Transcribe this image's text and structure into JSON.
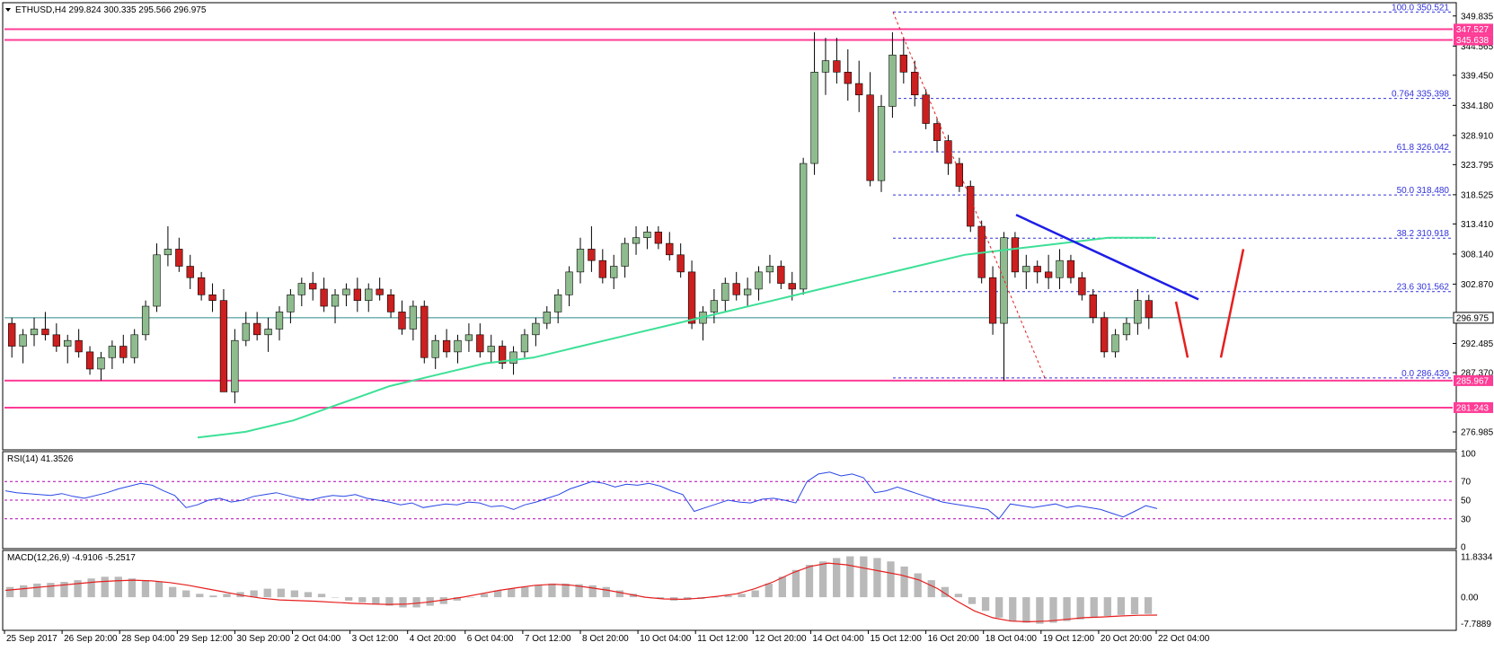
{
  "header": {
    "main": "ETHUSD,H4  299.824 300.335 295.566 296.975",
    "rsi": "RSI(14) 41.3526",
    "macd": "MACD(12,26,9) -4.9106 -5.2517"
  },
  "colors": {
    "bull_body": "#8fbc8f",
    "bear_body": "#cc1f1f",
    "wick": "#000000",
    "ma": "#3ce096",
    "resistance": "#ff3c96",
    "fib": "#3232dc",
    "trendline": "#1e1ee6",
    "rsi_line": "#2846e6",
    "macd_hist": "#b9b9b9",
    "macd_signal": "#e61e1e",
    "current_price": "#2d8a8a",
    "arrows": "#e61e1e"
  },
  "chart_data": [
    {
      "type": "candlestick",
      "symbol": "ETHUSD",
      "timeframe": "H4",
      "ylim": [
        274,
        352
      ],
      "y_ticks": [
        "349.835",
        "344.565",
        "339.450",
        "334.180",
        "328.910",
        "323.795",
        "318.525",
        "313.410",
        "308.140",
        "302.870",
        "292.485",
        "287.370",
        "276.985"
      ],
      "x_ticks": [
        "25 Sep 2017",
        "26 Sep 20:00",
        "28 Sep 04:00",
        "29 Sep 12:00",
        "30 Sep 20:00",
        "2 Oct 04:00",
        "3 Oct 12:00",
        "4 Oct 20:00",
        "6 Oct 04:00",
        "7 Oct 12:00",
        "8 Oct 20:00",
        "10 Oct 04:00",
        "11 Oct 12:00",
        "12 Oct 20:00",
        "14 Oct 04:00",
        "15 Oct 12:00",
        "16 Oct 20:00",
        "18 Oct 04:00",
        "19 Oct 12:00",
        "20 Oct 20:00",
        "22 Oct 04:00"
      ],
      "current_price": "296.975",
      "horizontal_levels": [
        {
          "label": "347.527",
          "value": 347.527
        },
        {
          "label": "345.638",
          "value": 345.638
        },
        {
          "label": "285.967",
          "value": 285.967
        },
        {
          "label": "281.243",
          "value": 281.243
        }
      ],
      "fibonacci": [
        {
          "label": "100.0  350.521",
          "value": 350.521
        },
        {
          "label": "0.764  335.398",
          "value": 335.398
        },
        {
          "label": "61.8  326.042",
          "value": 326.042
        },
        {
          "label": "50.0  318.480",
          "value": 318.48
        },
        {
          "label": "38.2  310.918",
          "value": 310.918
        },
        {
          "label": "23.6  301.562",
          "value": 301.562
        },
        {
          "label": "0.0  286.439",
          "value": 286.439
        }
      ],
      "candles": [
        [
          296,
          297,
          290,
          292
        ],
        [
          292,
          295,
          289,
          294
        ],
        [
          294,
          297,
          292,
          295
        ],
        [
          295,
          298,
          293,
          294
        ],
        [
          294,
          296,
          291,
          292
        ],
        [
          292,
          294,
          289,
          293
        ],
        [
          293,
          295,
          290,
          291
        ],
        [
          291,
          292,
          287,
          288
        ],
        [
          288,
          291,
          286,
          290
        ],
        [
          290,
          293,
          288,
          292
        ],
        [
          292,
          294,
          289,
          290
        ],
        [
          290,
          295,
          289,
          294
        ],
        [
          294,
          300,
          293,
          299
        ],
        [
          299,
          310,
          298,
          308
        ],
        [
          308,
          313,
          306,
          309
        ],
        [
          309,
          311,
          305,
          306
        ],
        [
          306,
          308,
          302,
          304
        ],
        [
          304,
          305,
          300,
          301
        ],
        [
          301,
          303,
          298,
          300
        ],
        [
          300,
          302,
          284,
          284
        ],
        [
          284,
          295,
          282,
          293
        ],
        [
          293,
          298,
          292,
          296
        ],
        [
          296,
          298,
          293,
          294
        ],
        [
          294,
          297,
          291,
          295
        ],
        [
          295,
          299,
          293,
          298
        ],
        [
          298,
          302,
          296,
          301
        ],
        [
          301,
          304,
          299,
          303
        ],
        [
          303,
          305,
          300,
          302
        ],
        [
          302,
          304,
          298,
          299
        ],
        [
          299,
          302,
          296,
          301
        ],
        [
          301,
          303,
          299,
          302
        ],
        [
          302,
          304,
          298,
          300
        ],
        [
          300,
          303,
          298,
          302
        ],
        [
          302,
          304,
          300,
          301
        ],
        [
          301,
          302,
          297,
          298
        ],
        [
          298,
          300,
          294,
          295
        ],
        [
          295,
          300,
          293,
          299
        ],
        [
          299,
          300,
          289,
          290
        ],
        [
          290,
          294,
          288,
          293
        ],
        [
          293,
          295,
          290,
          291
        ],
        [
          291,
          294,
          289,
          293
        ],
        [
          293,
          296,
          291,
          294
        ],
        [
          294,
          296,
          290,
          291
        ],
        [
          291,
          294,
          289,
          292
        ],
        [
          292,
          293,
          288,
          289
        ],
        [
          289,
          292,
          287,
          291
        ],
        [
          291,
          295,
          290,
          294
        ],
        [
          294,
          297,
          292,
          296
        ],
        [
          296,
          299,
          295,
          298
        ],
        [
          298,
          302,
          296,
          301
        ],
        [
          301,
          306,
          299,
          305
        ],
        [
          305,
          311,
          303,
          309
        ],
        [
          309,
          313,
          305,
          307
        ],
        [
          307,
          309,
          303,
          304
        ],
        [
          304,
          308,
          302,
          306
        ],
        [
          306,
          311,
          304,
          310
        ],
        [
          310,
          313,
          308,
          311
        ],
        [
          311,
          313,
          309,
          312
        ],
        [
          312,
          313,
          309,
          310
        ],
        [
          310,
          312,
          307,
          308
        ],
        [
          308,
          310,
          304,
          305
        ],
        [
          305,
          307,
          295,
          296
        ],
        [
          296,
          299,
          293,
          298
        ],
        [
          298,
          302,
          296,
          300
        ],
        [
          300,
          304,
          298,
          303
        ],
        [
          303,
          305,
          300,
          301
        ],
        [
          301,
          304,
          299,
          302
        ],
        [
          302,
          306,
          300,
          305
        ],
        [
          305,
          308,
          303,
          306
        ],
        [
          306,
          307,
          302,
          303
        ],
        [
          303,
          305,
          300,
          302
        ],
        [
          302,
          325,
          301,
          324
        ],
        [
          324,
          347,
          322,
          340
        ],
        [
          340,
          346,
          336,
          342
        ],
        [
          342,
          346,
          338,
          340
        ],
        [
          340,
          344,
          335,
          338
        ],
        [
          338,
          342,
          333,
          336
        ],
        [
          336,
          340,
          320,
          321
        ],
        [
          321,
          336,
          319,
          334
        ],
        [
          334,
          347,
          332,
          343
        ],
        [
          343,
          346,
          338,
          340
        ],
        [
          340,
          342,
          334,
          336
        ],
        [
          336,
          337,
          330,
          331
        ],
        [
          331,
          332,
          326,
          328
        ],
        [
          328,
          329,
          322,
          324
        ],
        [
          324,
          325,
          319,
          320
        ],
        [
          320,
          321,
          312,
          313
        ],
        [
          313,
          314,
          303,
          304
        ],
        [
          304,
          306,
          294,
          296
        ],
        [
          296,
          312,
          286,
          311
        ],
        [
          311,
          312,
          304,
          305
        ],
        [
          305,
          308,
          302,
          306
        ],
        [
          306,
          307,
          303,
          305
        ],
        [
          305,
          308,
          302,
          304
        ],
        [
          304,
          309,
          302,
          307
        ],
        [
          307,
          308,
          303,
          304
        ],
        [
          304,
          305,
          300,
          301
        ],
        [
          301,
          302,
          296,
          297
        ],
        [
          297,
          298,
          290,
          291
        ],
        [
          291,
          295,
          290,
          294
        ],
        [
          294,
          297,
          293,
          296
        ],
        [
          296,
          302,
          294,
          300
        ],
        [
          300,
          301,
          295,
          296.975
        ]
      ],
      "ma": [
        276,
        277,
        279,
        282,
        285,
        287,
        289,
        290,
        292,
        294,
        296,
        298,
        300,
        302,
        304,
        306,
        308,
        309,
        310,
        311,
        311
      ]
    },
    {
      "type": "line",
      "name": "RSI(14) 41.3526",
      "ylim": [
        0,
        100
      ],
      "y_ticks": [
        "100",
        "70",
        "50",
        "30",
        "0"
      ],
      "levels": [
        70,
        50,
        30
      ],
      "values": [
        60,
        58,
        57,
        56,
        55,
        57,
        54,
        52,
        55,
        58,
        62,
        65,
        68,
        66,
        60,
        55,
        42,
        45,
        50,
        52,
        48,
        50,
        54,
        56,
        58,
        55,
        52,
        50,
        53,
        55,
        54,
        56,
        52,
        50,
        48,
        45,
        47,
        42,
        44,
        46,
        45,
        48,
        47,
        43,
        44,
        40,
        45,
        48,
        52,
        56,
        62,
        66,
        70,
        68,
        64,
        67,
        66,
        68,
        65,
        60,
        56,
        38,
        42,
        46,
        50,
        48,
        47,
        51,
        52,
        50,
        47,
        70,
        78,
        80,
        76,
        78,
        74,
        58,
        60,
        64,
        60,
        56,
        52,
        48,
        46,
        44,
        42,
        40,
        30,
        46,
        44,
        42,
        44,
        46,
        42,
        44,
        42,
        40,
        36,
        32,
        38,
        44,
        41
      ]
    },
    {
      "type": "bar",
      "name": "MACD(12,26,9) -4.9106 -5.2517",
      "ylim": [
        -9.2,
        13.2
      ],
      "y_ticks": [
        "11.8334",
        "0.00",
        "-7.7889"
      ],
      "histogram": [
        3,
        3.5,
        4,
        4.2,
        4.5,
        5,
        5.5,
        6,
        6,
        5.5,
        5,
        4.5,
        3,
        2,
        1,
        0.5,
        1,
        1.5,
        2,
        2.5,
        2.5,
        2,
        1.5,
        1,
        0,
        -1,
        -1.5,
        -2,
        -2.5,
        -3,
        -3,
        -2.5,
        -2,
        -1,
        0,
        1,
        2,
        2.5,
        3,
        3.5,
        4,
        4,
        3.8,
        3.5,
        3,
        2,
        1,
        0,
        -0.5,
        -1,
        -0.8,
        -0.5,
        0,
        0.5,
        1,
        2,
        4,
        6,
        8,
        9.5,
        10.5,
        11.5,
        12,
        12,
        11.5,
        10.5,
        9,
        7,
        5,
        3,
        1,
        -2,
        -4,
        -6,
        -7,
        -7.5,
        -7.8,
        -7.5,
        -7,
        -6.5,
        -6,
        -5.5,
        -5.2,
        -5,
        -4.9
      ],
      "signal": [
        2,
        2.5,
        3,
        3.5,
        4,
        4.5,
        4.8,
        5,
        4.8,
        4.3,
        3.5,
        2.5,
        1.5,
        0.5,
        -0.3,
        -0.8,
        -1,
        -1.2,
        -1.5,
        -1.8,
        -2,
        -2.1,
        -2,
        -1.5,
        -0.8,
        0,
        1,
        2,
        2.8,
        3.5,
        3.8,
        3.5,
        2.8,
        2,
        1,
        0,
        -0.5,
        -0.6,
        -0.3,
        0.3,
        1,
        2.5,
        4.5,
        7,
        9,
        10,
        9.5,
        8.5,
        7.5,
        6.5,
        5,
        2.5,
        -1,
        -4,
        -6,
        -7,
        -7.2,
        -7,
        -6.5,
        -6,
        -5.8,
        -5.5,
        -5.3,
        -5.25
      ]
    }
  ]
}
